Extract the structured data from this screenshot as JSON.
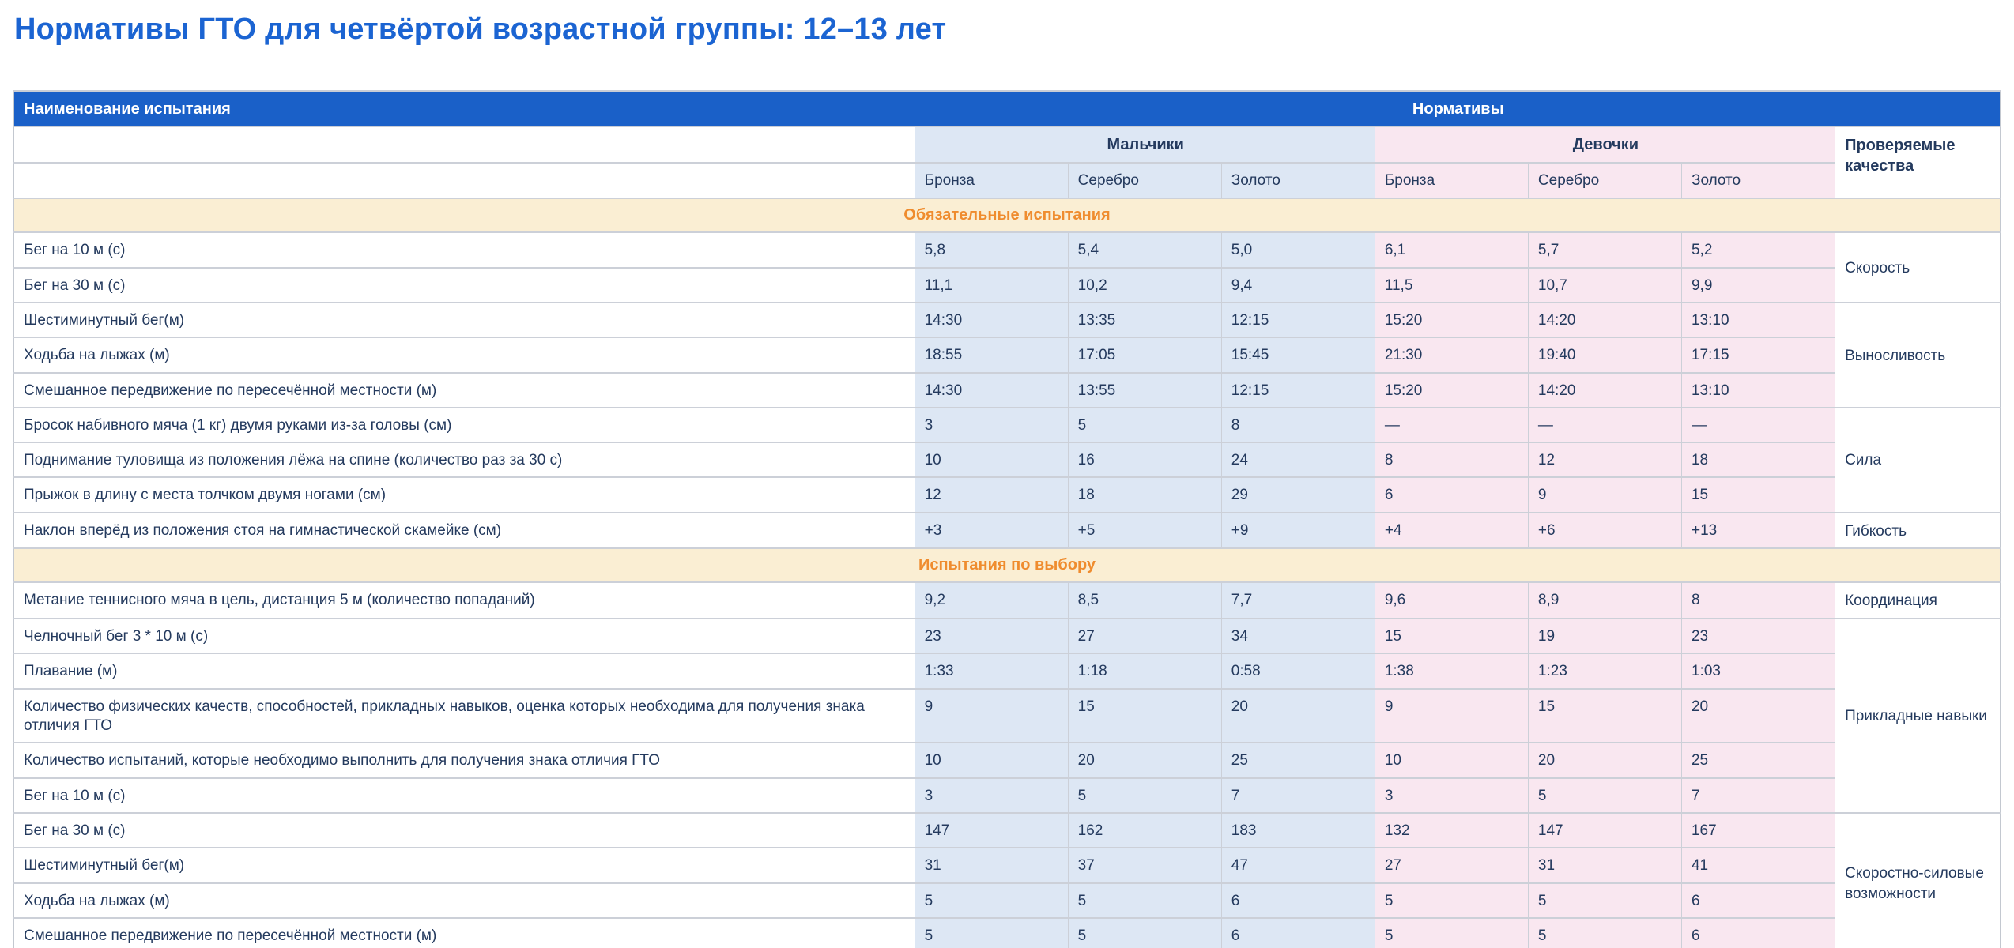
{
  "page_title": "Нормативы ГТО для четвёртой возрастной группы: 12–13 лет",
  "colors": {
    "title_blue": "#1b64d2",
    "header_blue": "#1a60c8",
    "boys_bg": "#dde7f4",
    "girls_bg": "#f9e7f0",
    "section_bg": "#faeed3",
    "section_text": "#ef8c2e",
    "text_navy": "#243a5e",
    "border_gray": "#ccd0d8"
  },
  "table": {
    "col_headers": {
      "name": "Наименование испытания",
      "norms": "Нормативы",
      "boys": "Мальчики",
      "girls": "Девочки",
      "qualities": "Проверяемые качества",
      "medals": [
        "Бронза",
        "Серебро",
        "Золото"
      ]
    },
    "sections": [
      {
        "title": "Обязательные испытания",
        "rows": [
          {
            "name": "Бег на 10 м (с)",
            "boys": [
              "5,8",
              "5,4",
              "5,0"
            ],
            "girls": [
              "6,1",
              "5,7",
              "5,2"
            ],
            "quality": "Скорость",
            "quality_rowspan": 2
          },
          {
            "name": "Бег на 30 м (с)",
            "boys": [
              "11,1",
              "10,2",
              "9,4"
            ],
            "girls": [
              "11,5",
              "10,7",
              "9,9"
            ],
            "quality": null
          },
          {
            "name": "Шестиминутный бег(м)",
            "boys": [
              "14:30",
              "13:35",
              "12:15"
            ],
            "girls": [
              "15:20",
              "14:20",
              "13:10"
            ],
            "quality": "Выносливость",
            "quality_rowspan": 3
          },
          {
            "name": "Ходьба на лыжах (м)",
            "boys": [
              "18:55",
              "17:05",
              "15:45"
            ],
            "girls": [
              "21:30",
              "19:40",
              "17:15"
            ],
            "quality": null
          },
          {
            "name": "Смешанное передвижение по пересечённой местности (м)",
            "boys": [
              "14:30",
              "13:55",
              "12:15"
            ],
            "girls": [
              "15:20",
              "14:20",
              "13:10"
            ],
            "quality": null
          },
          {
            "name": "Бросок набивного мяча (1 кг) двумя руками из-за головы (см)",
            "boys": [
              "3",
              "5",
              "8"
            ],
            "girls": [
              "—",
              "—",
              "—"
            ],
            "quality": "Сила",
            "quality_rowspan": 3
          },
          {
            "name": "Поднимание туловища из положения лёжа на спине (количество раз за 30 с)",
            "boys": [
              "10",
              "16",
              "24"
            ],
            "girls": [
              "8",
              "12",
              "18"
            ],
            "quality": null
          },
          {
            "name": "Прыжок в длину с места толчком двумя ногами (см)",
            "boys": [
              "12",
              "18",
              "29"
            ],
            "girls": [
              "6",
              "9",
              "15"
            ],
            "quality": null
          },
          {
            "name": "Наклон вперёд из положения стоя на гимнастической скамейке (см)",
            "boys": [
              "+3",
              "+5",
              "+9"
            ],
            "girls": [
              "+4",
              "+6",
              "+13"
            ],
            "quality": "Гибкость",
            "quality_rowspan": 1
          }
        ]
      },
      {
        "title": "Испытания по выбору",
        "rows": [
          {
            "name": "Метание теннисного мяча в цель, дистанция 5 м (количество попаданий)",
            "boys": [
              "9,2",
              "8,5",
              "7,7"
            ],
            "girls": [
              "9,6",
              "8,9",
              "8"
            ],
            "quality": "Координация",
            "quality_rowspan": 1
          },
          {
            "name": "Челночный бег 3 * 10 м (с)",
            "boys": [
              "23",
              "27",
              "34"
            ],
            "girls": [
              "15",
              "19",
              "23"
            ],
            "quality": "Прикладные навыки",
            "quality_rowspan": 5
          },
          {
            "name": "Плавание (м)",
            "boys": [
              "1:33",
              "1:18",
              "0:58"
            ],
            "girls": [
              "1:38",
              "1:23",
              "1:03"
            ],
            "quality": null
          },
          {
            "name": "Количество физических качеств, способностей, прикладных навыков, оценка которых необходима для получения знака отличия ГТО",
            "boys": [
              "9",
              "15",
              "20"
            ],
            "girls": [
              "9",
              "15",
              "20"
            ],
            "quality": null
          },
          {
            "name": "Количество испытаний, которые необходимо выполнить для получения знака отличия ГТО",
            "boys": [
              "10",
              "20",
              "25"
            ],
            "girls": [
              "10",
              "20",
              "25"
            ],
            "quality": null
          },
          {
            "name": "Бег на 10 м (с)",
            "boys": [
              "3",
              "5",
              "7"
            ],
            "girls": [
              "3",
              "5",
              "7"
            ],
            "quality": null
          },
          {
            "name": "Бег на 30 м (с)",
            "boys": [
              "147",
              "162",
              "183"
            ],
            "girls": [
              "132",
              "147",
              "167"
            ],
            "quality": "Скоростно-силовые возможности",
            "quality_rowspan": 4
          },
          {
            "name": "Шестиминутный бег(м)",
            "boys": [
              "31",
              "37",
              "47"
            ],
            "girls": [
              "27",
              "31",
              "41"
            ],
            "quality": null
          },
          {
            "name": "Ходьба на лыжах (м)",
            "boys": [
              "5",
              "5",
              "6"
            ],
            "girls": [
              "5",
              "5",
              "6"
            ],
            "quality": null
          },
          {
            "name": "Смешанное передвижение по пересечённой местности (м)",
            "boys": [
              "5",
              "5",
              "6"
            ],
            "girls": [
              "5",
              "5",
              "6"
            ],
            "quality": null
          }
        ]
      }
    ]
  }
}
